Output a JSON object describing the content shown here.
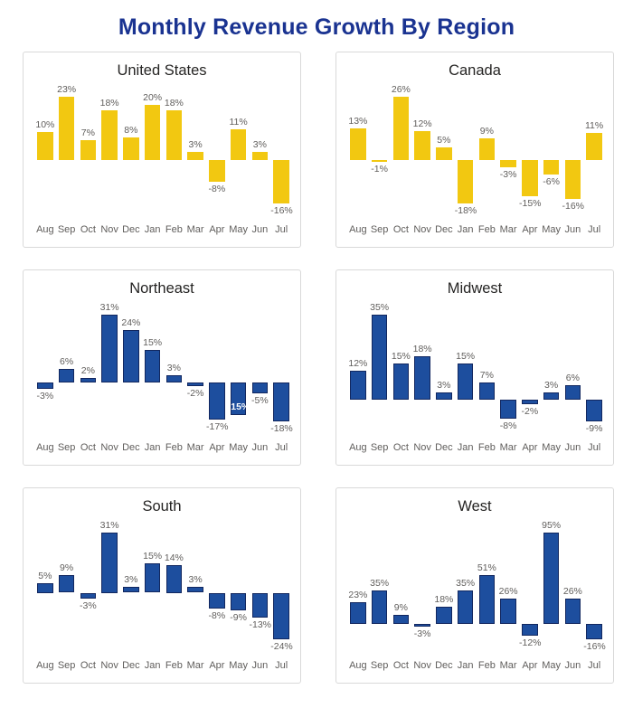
{
  "page_title": "Monthly Revenue Growth By Region",
  "colors": {
    "page_title": "#1A3391",
    "chart_title": "#252423",
    "panel_border": "#D9D9D9",
    "label_gray": "#605E5C",
    "inside_label": "#FFFFFF",
    "yellow_fill": "#F2C811",
    "yellow_border": "#F2C811",
    "blue_fill": "#1D4E9E",
    "blue_border": "#12275F"
  },
  "chart_data": [
    {
      "type": "bar",
      "title": "United States",
      "bar_style": "yellow",
      "categories": [
        "Aug",
        "Sep",
        "Oct",
        "Nov",
        "Dec",
        "Jan",
        "Feb",
        "Mar",
        "Apr",
        "May",
        "Jun",
        "Jul"
      ],
      "values": [
        10,
        23,
        7,
        18,
        8,
        20,
        18,
        3,
        -8,
        11,
        3,
        -16
      ],
      "labels": [
        "10%",
        "23%",
        "7%",
        "18%",
        "8%",
        "20%",
        "18%",
        "3%",
        "-8%",
        "11%",
        "3%",
        "-16%"
      ],
      "inside_label_indices": [],
      "xlabel": "",
      "ylabel": "",
      "data_labels": "on",
      "axis_lines": "none",
      "grid": "off",
      "legend": "none"
    },
    {
      "type": "bar",
      "title": "Canada",
      "bar_style": "yellow",
      "categories": [
        "Aug",
        "Sep",
        "Oct",
        "Nov",
        "Dec",
        "Jan",
        "Feb",
        "Mar",
        "Apr",
        "May",
        "Jun",
        "Jul"
      ],
      "values": [
        13,
        -1,
        26,
        12,
        5,
        -18,
        9,
        -3,
        -15,
        -6,
        -16,
        11
      ],
      "labels": [
        "13%",
        "-1%",
        "26%",
        "12%",
        "5%",
        "-18%",
        "9%",
        "-3%",
        "-15%",
        "-6%",
        "-16%",
        "11%"
      ],
      "inside_label_indices": [],
      "xlabel": "",
      "ylabel": "",
      "data_labels": "on",
      "axis_lines": "none",
      "grid": "off",
      "legend": "none"
    },
    {
      "type": "bar",
      "title": "Northeast",
      "bar_style": "blue",
      "categories": [
        "Aug",
        "Sep",
        "Oct",
        "Nov",
        "Dec",
        "Jan",
        "Feb",
        "Mar",
        "Apr",
        "May",
        "Jun",
        "Jul"
      ],
      "values": [
        -3,
        6,
        2,
        31,
        24,
        15,
        3,
        -2,
        -17,
        -15,
        -5,
        -18
      ],
      "labels": [
        "-3%",
        "6%",
        "2%",
        "31%",
        "24%",
        "15%",
        "3%",
        "-2%",
        "-17%",
        "-15%",
        "-5%",
        "-18%"
      ],
      "inside_label_indices": [
        9
      ],
      "xlabel": "",
      "ylabel": "",
      "data_labels": "on",
      "axis_lines": "none",
      "grid": "off",
      "legend": "none"
    },
    {
      "type": "bar",
      "title": "Midwest",
      "bar_style": "blue",
      "categories": [
        "Aug",
        "Sep",
        "Oct",
        "Nov",
        "Dec",
        "Jan",
        "Feb",
        "Mar",
        "Apr",
        "May",
        "Jun",
        "Jul"
      ],
      "values": [
        12,
        35,
        15,
        18,
        3,
        15,
        7,
        -8,
        -2,
        3,
        6,
        -9
      ],
      "labels": [
        "12%",
        "35%",
        "15%",
        "18%",
        "3%",
        "15%",
        "7%",
        "-8%",
        "-2%",
        "3%",
        "6%",
        "-9%"
      ],
      "inside_label_indices": [],
      "xlabel": "",
      "ylabel": "",
      "data_labels": "on",
      "axis_lines": "none",
      "grid": "off",
      "legend": "none"
    },
    {
      "type": "bar",
      "title": "South",
      "bar_style": "blue",
      "categories": [
        "Aug",
        "Sep",
        "Oct",
        "Nov",
        "Dec",
        "Jan",
        "Feb",
        "Mar",
        "Apr",
        "May",
        "Jun",
        "Jul"
      ],
      "values": [
        5,
        9,
        -3,
        31,
        3,
        15,
        14,
        3,
        -8,
        -9,
        -13,
        -24
      ],
      "labels": [
        "5%",
        "9%",
        "-3%",
        "31%",
        "3%",
        "15%",
        "14%",
        "3%",
        "-8%",
        "-9%",
        "-13%",
        "-24%"
      ],
      "inside_label_indices": [],
      "xlabel": "",
      "ylabel": "",
      "data_labels": "on",
      "axis_lines": "none",
      "grid": "off",
      "legend": "none"
    },
    {
      "type": "bar",
      "title": "West",
      "bar_style": "blue",
      "categories": [
        "Aug",
        "Sep",
        "Oct",
        "Nov",
        "Dec",
        "Jan",
        "Feb",
        "Mar",
        "Apr",
        "May",
        "Jun",
        "Jul"
      ],
      "values": [
        23,
        35,
        9,
        -3,
        18,
        35,
        51,
        26,
        -12,
        95,
        26,
        -16
      ],
      "labels": [
        "23%",
        "35%",
        "9%",
        "-3%",
        "18%",
        "35%",
        "51%",
        "26%",
        "-12%",
        "95%",
        "26%",
        "-16%"
      ],
      "inside_label_indices": [],
      "xlabel": "",
      "ylabel": "",
      "data_labels": "on",
      "axis_lines": "none",
      "grid": "off",
      "legend": "none"
    }
  ]
}
